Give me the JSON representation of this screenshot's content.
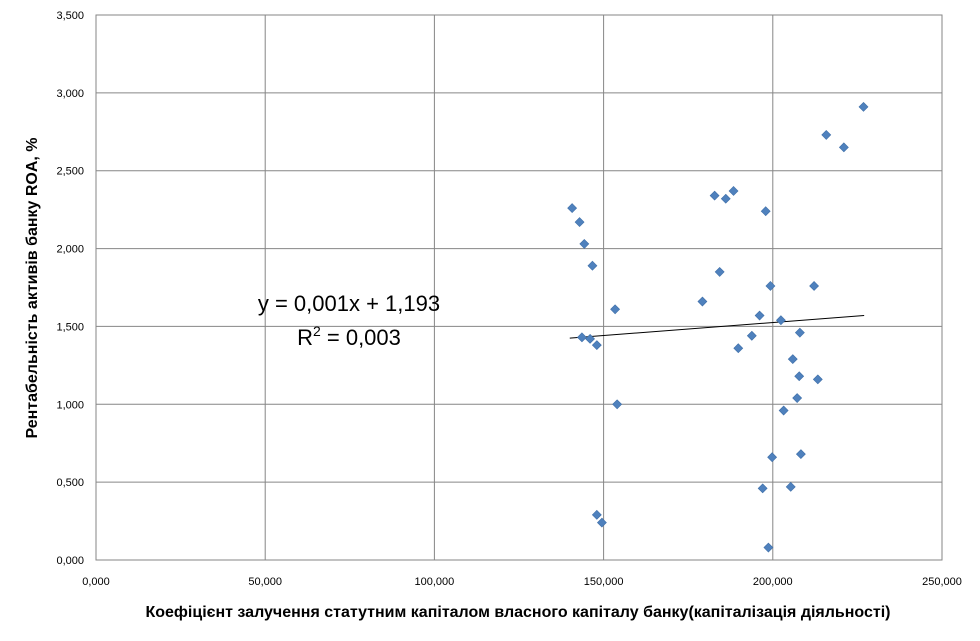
{
  "chart_data": {
    "type": "scatter",
    "title": "",
    "xlabel": "Коефіцієнт залучення статутним капіталом   власного капіталу банку(капіталізація діяльності)",
    "ylabel": "Рентабельність активів  банку ROA, %",
    "xlim": [
      0,
      250000
    ],
    "ylim": [
      0,
      3.5
    ],
    "x_ticks": [
      "0,000",
      "50,000",
      "100,000",
      "150,000",
      "200,000",
      "250,000"
    ],
    "y_ticks": [
      "0,000",
      "0,500",
      "1,000",
      "1,500",
      "2,000",
      "2,500",
      "3,000",
      "3,500"
    ],
    "grid": true,
    "legend": "none",
    "marker": "diamond",
    "series_color": "#4F81BD",
    "points": [
      {
        "x": 140700,
        "y": 2.26
      },
      {
        "x": 142900,
        "y": 2.17
      },
      {
        "x": 144300,
        "y": 2.03
      },
      {
        "x": 146700,
        "y": 1.89
      },
      {
        "x": 143600,
        "y": 1.43
      },
      {
        "x": 146000,
        "y": 1.42
      },
      {
        "x": 148000,
        "y": 1.38
      },
      {
        "x": 153400,
        "y": 1.61
      },
      {
        "x": 154000,
        "y": 1.0
      },
      {
        "x": 148000,
        "y": 0.29
      },
      {
        "x": 149500,
        "y": 0.24
      },
      {
        "x": 179200,
        "y": 1.66
      },
      {
        "x": 182800,
        "y": 2.34
      },
      {
        "x": 184300,
        "y": 1.85
      },
      {
        "x": 186100,
        "y": 2.32
      },
      {
        "x": 188400,
        "y": 2.37
      },
      {
        "x": 189800,
        "y": 1.36
      },
      {
        "x": 193800,
        "y": 1.44
      },
      {
        "x": 196100,
        "y": 1.57
      },
      {
        "x": 197000,
        "y": 0.46
      },
      {
        "x": 197900,
        "y": 2.24
      },
      {
        "x": 198700,
        "y": 0.08
      },
      {
        "x": 199300,
        "y": 1.76
      },
      {
        "x": 199800,
        "y": 0.66
      },
      {
        "x": 202400,
        "y": 1.54
      },
      {
        "x": 203200,
        "y": 0.96
      },
      {
        "x": 205300,
        "y": 0.47
      },
      {
        "x": 205900,
        "y": 1.29
      },
      {
        "x": 207200,
        "y": 1.04
      },
      {
        "x": 207800,
        "y": 1.18
      },
      {
        "x": 208000,
        "y": 1.46
      },
      {
        "x": 208300,
        "y": 0.68
      },
      {
        "x": 212200,
        "y": 1.76
      },
      {
        "x": 213300,
        "y": 1.16
      },
      {
        "x": 215800,
        "y": 2.73
      },
      {
        "x": 221000,
        "y": 2.65
      },
      {
        "x": 226800,
        "y": 2.91
      }
    ],
    "trendline": {
      "type": "linear",
      "x_range": [
        140000,
        227000
      ],
      "y_start": 1.425,
      "y_end": 1.57,
      "color": "#000000"
    },
    "annotations": {
      "equation": "y = 0,001x + 1,193",
      "r2_prefix": "R",
      "r2_sup": "2",
      "r2_suffix": " = 0,003"
    }
  }
}
